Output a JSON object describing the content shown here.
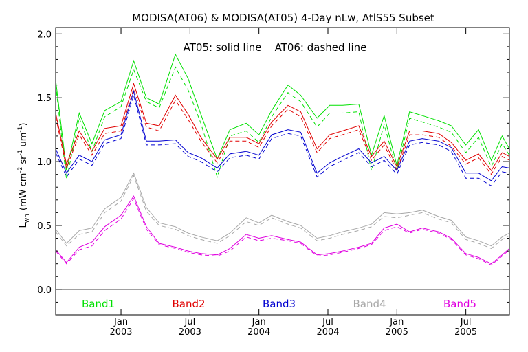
{
  "chart_data": {
    "type": "line",
    "title": "MODISA(AT06) & MODISA(AT05) 4-Day nLw, AtlS55 Subset",
    "annotation": "AT05: solid line    AT06: dashed line",
    "ylabel": "L_wn (mW cm^-2 sr^-1 um^-1)",
    "ylabel_main": "L",
    "ylabel_sub": "wn",
    "ylabel_units_a": "(mW cm",
    "ylabel_units_b": "sr",
    "ylabel_units_c": "um",
    "ylabel_units_close": ")",
    "ylabel_exp_a": "-2",
    "ylabel_exp_b": "-1",
    "ylabel_exp_c": "-1",
    "ylim": [
      -0.2,
      2.05
    ],
    "xlim": [
      0,
      12.5
    ],
    "yticks": [
      {
        "v": 0.0,
        "label": "0.0"
      },
      {
        "v": 0.5,
        "label": "0.5"
      },
      {
        "v": 1.0,
        "label": "1.0"
      },
      {
        "v": 1.5,
        "label": "1.5"
      },
      {
        "v": 2.0,
        "label": "2.0"
      }
    ],
    "xticks": [
      {
        "v": 1.8,
        "month": "Jan",
        "year": "2003"
      },
      {
        "v": 3.7,
        "month": "Jul",
        "year": "2003"
      },
      {
        "v": 5.6,
        "month": "Jan",
        "year": "2004"
      },
      {
        "v": 7.5,
        "month": "Jul",
        "year": "2004"
      },
      {
        "v": 9.4,
        "month": "Jan",
        "year": "2005"
      },
      {
        "v": 11.3,
        "month": "Jul",
        "year": "2005"
      }
    ],
    "zero_line": 0.0,
    "colors": {
      "axes": "#000000",
      "Band1": "#00e000",
      "Band2": "#e00000",
      "Band3": "#0000d0",
      "Band4": "#a8a8a8",
      "Band5": "#e000e0"
    },
    "x": [
      0,
      0.3,
      0.65,
      1.0,
      1.35,
      1.8,
      2.15,
      2.5,
      2.85,
      3.3,
      3.65,
      4.0,
      4.45,
      4.8,
      5.25,
      5.6,
      5.95,
      6.4,
      6.75,
      7.2,
      7.55,
      7.9,
      8.35,
      8.7,
      9.05,
      9.4,
      9.75,
      10.1,
      10.55,
      10.9,
      11.3,
      11.65,
      12.0,
      12.3,
      12.5
    ],
    "series": [
      {
        "name": "Band1",
        "color": "#00e000",
        "solid": [
          1.64,
          0.93,
          1.38,
          1.14,
          1.4,
          1.47,
          1.79,
          1.5,
          1.45,
          1.84,
          1.65,
          1.37,
          1.02,
          1.25,
          1.3,
          1.21,
          1.4,
          1.6,
          1.52,
          1.34,
          1.44,
          1.44,
          1.45,
          1.05,
          1.36,
          0.97,
          1.39,
          1.36,
          1.32,
          1.28,
          1.13,
          1.25,
          1.01,
          1.2,
          1.1
        ],
        "dashed": [
          1.6,
          0.86,
          1.34,
          1.08,
          1.35,
          1.43,
          1.72,
          1.47,
          1.42,
          1.74,
          1.56,
          1.3,
          0.88,
          1.2,
          1.24,
          1.15,
          1.35,
          1.54,
          1.47,
          1.27,
          1.38,
          1.38,
          1.39,
          0.93,
          1.29,
          0.93,
          1.34,
          1.31,
          1.27,
          1.23,
          1.07,
          1.19,
          0.96,
          1.14,
          1.05
        ]
      },
      {
        "name": "Band2",
        "color": "#e00000",
        "solid": [
          1.38,
          0.98,
          1.24,
          1.08,
          1.26,
          1.28,
          1.61,
          1.3,
          1.28,
          1.52,
          1.37,
          1.19,
          1.02,
          1.19,
          1.19,
          1.14,
          1.31,
          1.44,
          1.39,
          1.1,
          1.21,
          1.24,
          1.28,
          1.04,
          1.16,
          0.96,
          1.24,
          1.24,
          1.22,
          1.15,
          1.01,
          1.06,
          0.93,
          1.07,
          1.04
        ],
        "dashed": [
          1.35,
          0.95,
          1.21,
          1.05,
          1.22,
          1.24,
          1.57,
          1.27,
          1.24,
          1.48,
          1.33,
          1.16,
          0.99,
          1.16,
          1.16,
          1.11,
          1.28,
          1.41,
          1.35,
          1.07,
          1.18,
          1.21,
          1.25,
          1.01,
          1.13,
          0.93,
          1.21,
          1.21,
          1.19,
          1.12,
          0.98,
          1.03,
          0.9,
          1.04,
          1.01
        ]
      },
      {
        "name": "Band3",
        "color": "#0000d0",
        "solid": [
          1.1,
          0.91,
          1.05,
          1.0,
          1.17,
          1.21,
          1.55,
          1.16,
          1.16,
          1.17,
          1.07,
          1.03,
          0.95,
          1.06,
          1.08,
          1.05,
          1.21,
          1.25,
          1.23,
          0.91,
          0.99,
          1.04,
          1.1,
          0.99,
          1.04,
          0.93,
          1.16,
          1.18,
          1.16,
          1.11,
          0.91,
          0.91,
          0.85,
          0.96,
          0.95
        ],
        "dashed": [
          1.07,
          0.88,
          1.02,
          0.97,
          1.14,
          1.18,
          1.52,
          1.13,
          1.13,
          1.14,
          1.04,
          1.0,
          0.92,
          1.03,
          1.05,
          1.02,
          1.18,
          1.22,
          1.2,
          0.88,
          0.96,
          1.01,
          1.07,
          0.96,
          1.01,
          0.9,
          1.13,
          1.15,
          1.13,
          1.08,
          0.87,
          0.87,
          0.81,
          0.92,
          0.91
        ]
      },
      {
        "name": "Band4",
        "color": "#a8a8a8",
        "solid": [
          0.47,
          0.36,
          0.46,
          0.48,
          0.63,
          0.72,
          0.91,
          0.64,
          0.52,
          0.49,
          0.44,
          0.41,
          0.38,
          0.44,
          0.56,
          0.52,
          0.58,
          0.53,
          0.5,
          0.4,
          0.42,
          0.45,
          0.48,
          0.51,
          0.6,
          0.59,
          0.6,
          0.62,
          0.57,
          0.54,
          0.41,
          0.38,
          0.34,
          0.41,
          0.44
        ],
        "dashed": [
          0.45,
          0.34,
          0.43,
          0.45,
          0.6,
          0.69,
          0.89,
          0.61,
          0.5,
          0.47,
          0.42,
          0.39,
          0.36,
          0.42,
          0.53,
          0.5,
          0.56,
          0.51,
          0.48,
          0.38,
          0.4,
          0.43,
          0.46,
          0.49,
          0.57,
          0.56,
          0.58,
          0.6,
          0.55,
          0.52,
          0.39,
          0.36,
          0.32,
          0.39,
          0.42
        ]
      },
      {
        "name": "Band5",
        "color": "#e000e0",
        "solid": [
          0.31,
          0.21,
          0.33,
          0.37,
          0.49,
          0.58,
          0.73,
          0.49,
          0.36,
          0.33,
          0.3,
          0.28,
          0.27,
          0.32,
          0.43,
          0.4,
          0.42,
          0.39,
          0.37,
          0.27,
          0.28,
          0.3,
          0.33,
          0.36,
          0.48,
          0.51,
          0.45,
          0.48,
          0.45,
          0.4,
          0.28,
          0.25,
          0.2,
          0.27,
          0.32
        ],
        "dashed": [
          0.3,
          0.2,
          0.31,
          0.34,
          0.46,
          0.55,
          0.71,
          0.47,
          0.35,
          0.32,
          0.29,
          0.27,
          0.26,
          0.3,
          0.41,
          0.38,
          0.4,
          0.38,
          0.36,
          0.26,
          0.27,
          0.29,
          0.32,
          0.35,
          0.46,
          0.49,
          0.44,
          0.47,
          0.44,
          0.39,
          0.27,
          0.24,
          0.19,
          0.26,
          0.31
        ]
      }
    ],
    "legend": [
      {
        "name": "Band1",
        "color": "#00e000"
      },
      {
        "name": "Band2",
        "color": "#e00000"
      },
      {
        "name": "Band3",
        "color": "#0000d0"
      },
      {
        "name": "Band4",
        "color": "#a8a8a8"
      },
      {
        "name": "Band5",
        "color": "#e000e0"
      }
    ]
  }
}
